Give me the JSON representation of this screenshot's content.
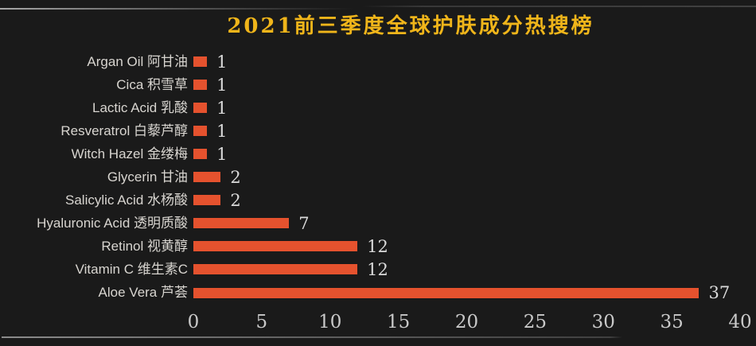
{
  "title": {
    "text": "2021前三季度全球护肤成分热搜榜"
  },
  "colors": {
    "background": "#1a1a1a",
    "title": "#f0b51a",
    "bar": "#e5522e",
    "category_label": "#d8d5d0",
    "value_label": "#dadada",
    "tick_label": "#c9c9c9"
  },
  "chart_data": {
    "type": "bar",
    "orientation": "horizontal",
    "title": "2021前三季度全球护肤成分热搜榜",
    "categories": [
      "Argan Oil 阿甘油",
      "Cica 积雪草",
      "Lactic Acid 乳酸",
      "Resveratrol 白藜芦醇",
      "Witch Hazel 金缕梅",
      "Glycerin 甘油",
      "Salicylic Acid 水杨酸",
      "Hyaluronic Acid 透明质酸",
      "Retinol 视黄醇",
      "Vitamin C 维生素C",
      "Aloe Vera 芦荟"
    ],
    "values": [
      1,
      1,
      1,
      1,
      1,
      2,
      2,
      7,
      12,
      12,
      37
    ],
    "value_labels_shown": true,
    "xlabel": "",
    "ylabel": "",
    "xlim": [
      0,
      40
    ],
    "x_ticks": [
      0,
      5,
      10,
      15,
      20,
      25,
      30,
      35,
      40
    ],
    "grid": false,
    "legend": false,
    "bar_color": "#e5522e"
  }
}
